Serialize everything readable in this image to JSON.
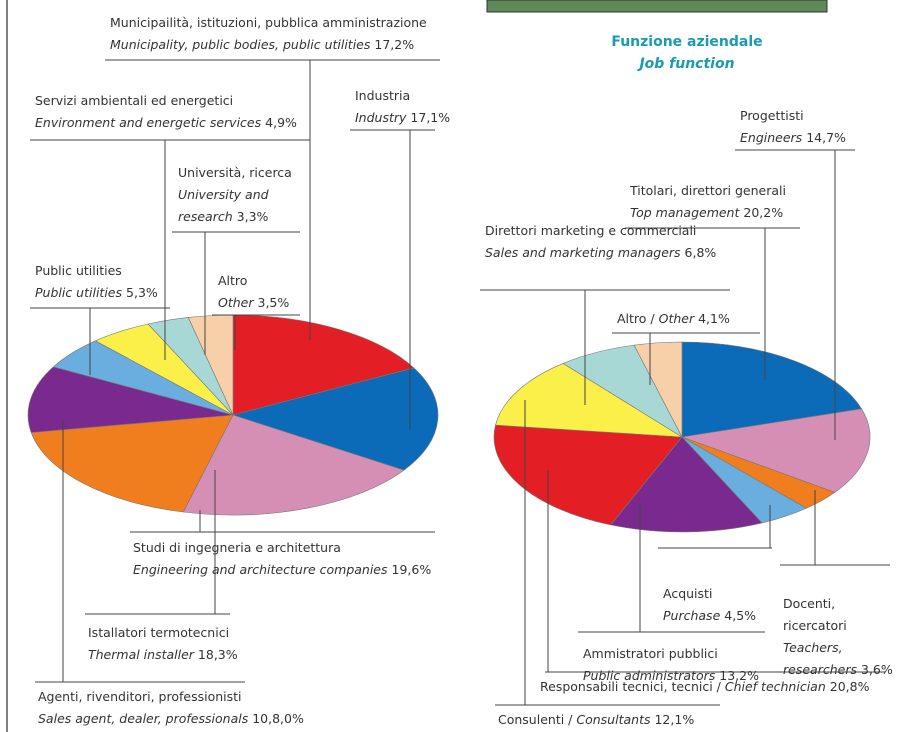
{
  "chart_data": [
    {
      "type": "pie",
      "categories": [
        "Municipailità, istituzioni, pubblica amministrazione",
        "Industria",
        "Studi di ingegneria e architettura",
        "Istallatori termotecnici",
        "Agenti, rivenditori, professionisti",
        "Public utilities",
        "Servizi ambientali ed energetici",
        "Università, ricerca",
        "Altro"
      ],
      "categories_en": [
        "Municipality, public bodies, public utilities",
        "Industry",
        "Engineering and architecture companies",
        "Thermal installer",
        "Sales agent, dealer, professionals",
        "Public utilities",
        "Environment and energetic services",
        "University and research",
        "Other"
      ],
      "values": [
        17.2,
        17.1,
        19.6,
        18.3,
        10.8,
        5.3,
        4.9,
        3.3,
        3.5
      ],
      "value_labels": [
        "17,2%",
        "17,1%",
        "19,6%",
        "18,3%",
        "10,8,0%",
        "5,3%",
        "4,9%",
        "3,3%",
        "3,5%"
      ],
      "colors": [
        "#e31e24",
        "#0b6bb8",
        "#d68fb4",
        "#f07d1e",
        "#7a2a8e",
        "#6aaedf",
        "#fbf04a",
        "#a8d8d6",
        "#f7cfa8"
      ]
    },
    {
      "type": "pie",
      "title": "Funzione aziendale",
      "subtitle": "Job function",
      "categories": [
        "Titolari, direttori generali",
        "Progettisti",
        "Docenti, ricercatori",
        "Acquisti",
        "Ammistratori pubblici",
        "Responsabili tecnici, tecnici /",
        "Consulenti /",
        "Direttori marketing e commerciali",
        "Altro /"
      ],
      "categories_en": [
        "Top management",
        "Engineers",
        "Teachers, researchers",
        "Purchase",
        "Public administrators",
        "Chief technician",
        "Consultants",
        "Sales and marketing managers",
        "Other"
      ],
      "values": [
        20.2,
        14.7,
        3.6,
        4.5,
        13.2,
        20.8,
        12.1,
        6.8,
        4.1
      ],
      "value_labels": [
        "20,2%",
        "14,7%",
        "3,6%",
        "4,5%",
        "13,2%",
        "20,8%",
        "12,1%",
        "6,8%",
        "4,1%"
      ],
      "colors": [
        "#0b6bb8",
        "#d68fb4",
        "#f07d1e",
        "#6aaedf",
        "#7a2a8e",
        "#e31e24",
        "#fbf04a",
        "#a8d8d6",
        "#f7cfa8"
      ]
    }
  ]
}
